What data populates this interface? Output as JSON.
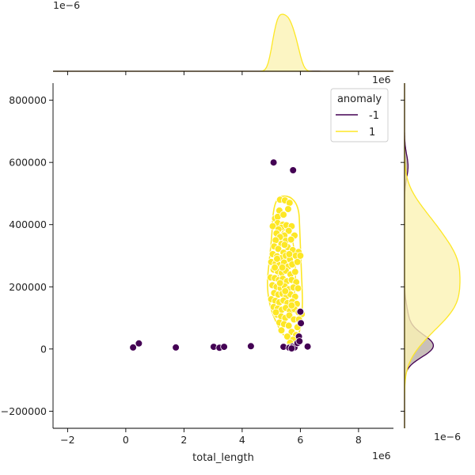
{
  "chart_data": {
    "type": "scatter",
    "subtype": "jointplot",
    "xlabel": "total_length",
    "ylabel": "",
    "x_offset_label": "1e6",
    "y_offset_label": "",
    "top_marginal_offset_label": "1e−6",
    "right_marginal_offset_label": "1e−6",
    "xlim": [
      -2.5,
      9.2
    ],
    "ylim": [
      -255000,
      855000
    ],
    "x_ticks": [
      -2,
      0,
      2,
      4,
      6,
      8
    ],
    "x_tick_labels": [
      "−2",
      "0",
      "2",
      "4",
      "6",
      "8"
    ],
    "y_ticks": [
      -200000,
      0,
      200000,
      400000,
      600000,
      800000
    ],
    "y_tick_labels": [
      "−200000",
      "0",
      "200000",
      "400000",
      "600000",
      "800000"
    ],
    "grid": false,
    "legend": {
      "title": "anomaly",
      "placement": "top-right",
      "entries": [
        {
          "label": "-1",
          "color": "#440154"
        },
        {
          "label": "1",
          "color": "#fde725"
        }
      ]
    },
    "colors": {
      "anomaly_neg": "#440154",
      "anomaly_pos": "#fde725",
      "kde_fill_pos": "#fbf3b4",
      "kde_fill_neg": "#9b8a80"
    },
    "series": [
      {
        "name": "1",
        "points": [
          [
            5.3,
            480000
          ],
          [
            5.47,
            478000
          ],
          [
            5.63,
            470000
          ],
          [
            5.28,
            445000
          ],
          [
            5.13,
            420000
          ],
          [
            5.22,
            425000
          ],
          [
            5.42,
            432000
          ],
          [
            5.58,
            450000
          ],
          [
            5.22,
            405000
          ],
          [
            5.05,
            395000
          ],
          [
            5.4,
            400000
          ],
          [
            5.34,
            390000
          ],
          [
            5.52,
            398000
          ],
          [
            5.7,
            395000
          ],
          [
            5.25,
            385000
          ],
          [
            5.18,
            372000
          ],
          [
            5.6,
            380000
          ],
          [
            5.45,
            365000
          ],
          [
            5.3,
            360000
          ],
          [
            5.8,
            365000
          ],
          [
            5.15,
            350000
          ],
          [
            5.5,
            348000
          ],
          [
            5.68,
            352000
          ],
          [
            5.35,
            338000
          ],
          [
            5.1,
            330000
          ],
          [
            5.24,
            322000
          ],
          [
            5.56,
            328000
          ],
          [
            5.74,
            318000
          ],
          [
            5.42,
            310000
          ],
          [
            5.94,
            312000
          ],
          [
            5.05,
            305000
          ],
          [
            5.2,
            298000
          ],
          [
            5.34,
            292000
          ],
          [
            5.5,
            300000
          ],
          [
            5.64,
            288000
          ],
          [
            5.84,
            300000
          ],
          [
            5.0,
            280000
          ],
          [
            5.15,
            275000
          ],
          [
            5.28,
            270000
          ],
          [
            5.44,
            278000
          ],
          [
            5.58,
            265000
          ],
          [
            5.72,
            272000
          ],
          [
            5.9,
            280000
          ],
          [
            5.08,
            255000
          ],
          [
            5.22,
            250000
          ],
          [
            5.36,
            245000
          ],
          [
            5.5,
            252000
          ],
          [
            5.66,
            240000
          ],
          [
            5.82,
            248000
          ],
          [
            4.98,
            230000
          ],
          [
            5.12,
            228000
          ],
          [
            5.26,
            222000
          ],
          [
            5.4,
            226000
          ],
          [
            5.54,
            218000
          ],
          [
            5.7,
            222000
          ],
          [
            5.86,
            215000
          ],
          [
            5.04,
            205000
          ],
          [
            5.18,
            200000
          ],
          [
            5.32,
            196000
          ],
          [
            5.46,
            202000
          ],
          [
            5.6,
            192000
          ],
          [
            5.76,
            198000
          ],
          [
            5.92,
            195000
          ],
          [
            5.1,
            180000
          ],
          [
            5.24,
            175000
          ],
          [
            5.38,
            178000
          ],
          [
            5.52,
            170000
          ],
          [
            5.66,
            176000
          ],
          [
            5.82,
            168000
          ],
          [
            5.0,
            160000
          ],
          [
            5.14,
            155000
          ],
          [
            5.28,
            150000
          ],
          [
            5.42,
            156000
          ],
          [
            5.56,
            148000
          ],
          [
            5.72,
            152000
          ],
          [
            5.88,
            145000
          ],
          [
            5.08,
            135000
          ],
          [
            5.22,
            130000
          ],
          [
            5.36,
            126000
          ],
          [
            5.5,
            132000
          ],
          [
            5.64,
            122000
          ],
          [
            5.8,
            128000
          ],
          [
            5.94,
            118000
          ],
          [
            5.2,
            110000
          ],
          [
            5.34,
            105000
          ],
          [
            5.48,
            100000
          ],
          [
            5.62,
            108000
          ],
          [
            5.78,
            95000
          ],
          [
            6.05,
            112000
          ],
          [
            5.28,
            85000
          ],
          [
            5.44,
            80000
          ],
          [
            5.6,
            75000
          ],
          [
            5.9,
            70000
          ],
          [
            5.35,
            60000
          ],
          [
            5.7,
            55000
          ],
          [
            5.85,
            45000
          ],
          [
            5.55,
            40000
          ],
          [
            5.75,
            30000
          ],
          [
            5.65,
            20000
          ],
          [
            5.8,
            10000
          ],
          [
            5.6,
            5000
          ],
          [
            5.2,
            290000
          ],
          [
            5.46,
            335000
          ],
          [
            5.62,
            305000
          ],
          [
            5.12,
            262000
          ],
          [
            5.38,
            262000
          ],
          [
            5.48,
            186000
          ],
          [
            5.3,
            212000
          ],
          [
            5.7,
            140000
          ],
          [
            5.16,
            118000
          ],
          [
            5.95,
            95000
          ],
          [
            6.0,
            300000
          ]
        ]
      },
      {
        "name": "-1",
        "points": [
          [
            5.08,
            600000
          ],
          [
            5.75,
            575000
          ],
          [
            0.25,
            5000
          ],
          [
            0.45,
            18000
          ],
          [
            1.72,
            5000
          ],
          [
            3.02,
            7000
          ],
          [
            3.22,
            4000
          ],
          [
            3.38,
            7000
          ],
          [
            4.3,
            9000
          ],
          [
            5.42,
            7000
          ],
          [
            5.62,
            4000
          ],
          [
            5.74,
            8000
          ],
          [
            5.8,
            5000
          ],
          [
            5.9,
            19000
          ],
          [
            5.95,
            40000
          ],
          [
            5.97,
            25000
          ],
          [
            6.02,
            83000
          ],
          [
            6.0,
            120000
          ],
          [
            6.25,
            8000
          ],
          [
            5.7,
            2000
          ]
        ]
      }
    ]
  }
}
